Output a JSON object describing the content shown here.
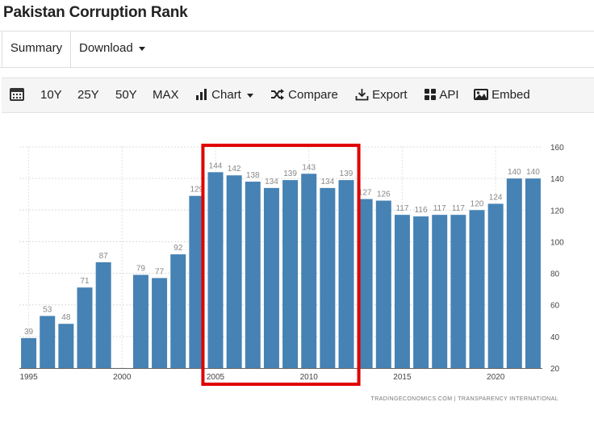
{
  "page": {
    "title": "Pakistan Corruption Rank"
  },
  "tabs": [
    {
      "label": "Summary",
      "selected": true
    },
    {
      "label": "Download",
      "dropdown": true
    }
  ],
  "toolbar": {
    "calendar_icon": "calendar-icon",
    "ranges": [
      "10Y",
      "25Y",
      "50Y",
      "MAX"
    ],
    "chart_label": "Chart",
    "compare_label": "Compare",
    "export_label": "Export",
    "api_label": "API",
    "embed_label": "Embed"
  },
  "chart_data": {
    "type": "bar",
    "title": "",
    "xlabel": "",
    "ylabel": "",
    "x": [
      1995,
      1996,
      1997,
      1998,
      1999,
      2001,
      2002,
      2003,
      2004,
      2005,
      2006,
      2007,
      2008,
      2009,
      2010,
      2011,
      2012,
      2013,
      2014,
      2015,
      2016,
      2017,
      2018,
      2019,
      2020,
      2021,
      2022
    ],
    "values": [
      39,
      53,
      48,
      71,
      87,
      79,
      77,
      92,
      129,
      144,
      142,
      138,
      134,
      139,
      143,
      134,
      139,
      127,
      126,
      117,
      116,
      117,
      117,
      120,
      124,
      140,
      140
    ],
    "x_ticks": [
      1995,
      2000,
      2005,
      2010,
      2015,
      2020
    ],
    "y_ticks": [
      20,
      40,
      60,
      80,
      100,
      120,
      140,
      160
    ],
    "ylim": [
      20,
      160
    ],
    "xlim": [
      1994.5,
      2022.5
    ],
    "y_axis_side": "right",
    "grid": true,
    "bar_color": "#4682b4",
    "highlight": {
      "from_year": 2005,
      "to_year": 2012,
      "color": "#e00000"
    },
    "source": "TRADINGECONOMICS.COM  |  TRANSPARENCY INTERNATIONAL"
  }
}
